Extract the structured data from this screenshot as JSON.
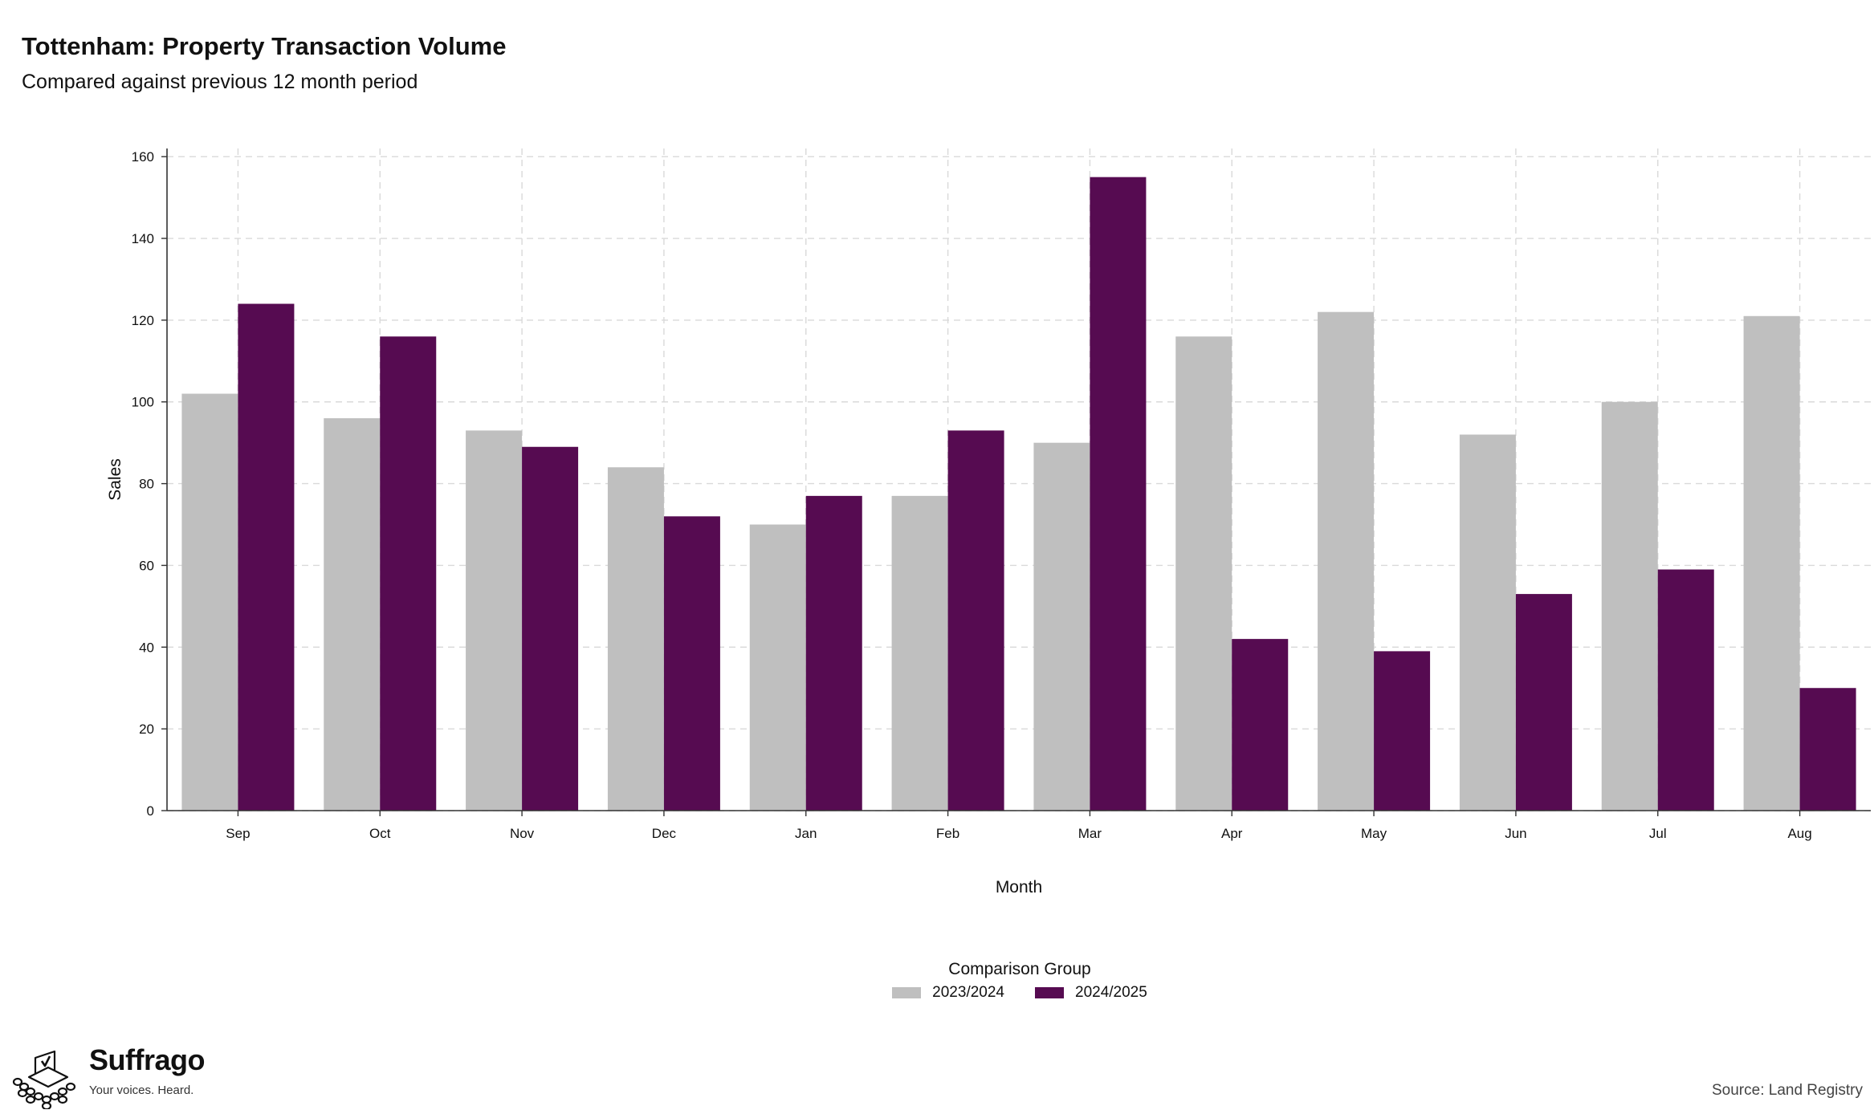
{
  "header": {
    "title": "Tottenham: Property Transaction Volume",
    "subtitle": "Compared against previous 12 month period"
  },
  "legend": {
    "title": "Comparison Group",
    "items": [
      {
        "label": "2023/2024",
        "color": "#bfbfbf"
      },
      {
        "label": "2024/2025",
        "color": "#560b51"
      }
    ]
  },
  "branding": {
    "name": "Suffrago",
    "tagline": "Your voices. Heard.",
    "logo_icon": "ballot-box-crowd-icon"
  },
  "footer": {
    "source": "Source: Land Registry"
  },
  "chart_data": {
    "type": "bar",
    "categories": [
      "Sep",
      "Oct",
      "Nov",
      "Dec",
      "Jan",
      "Feb",
      "Mar",
      "Apr",
      "May",
      "Jun",
      "Jul",
      "Aug"
    ],
    "series": [
      {
        "name": "2023/2024",
        "color": "#bfbfbf",
        "values": [
          102,
          96,
          93,
          84,
          70,
          77,
          90,
          116,
          122,
          92,
          100,
          121
        ]
      },
      {
        "name": "2024/2025",
        "color": "#560b51",
        "values": [
          124,
          116,
          89,
          72,
          77,
          93,
          155,
          42,
          39,
          53,
          59,
          30
        ]
      }
    ],
    "xlabel": "Month",
    "ylabel": "Sales",
    "ylim": [
      0,
      162
    ],
    "yticks": [
      0,
      20,
      40,
      60,
      80,
      100,
      120,
      140,
      160
    ],
    "grid": true,
    "legend_position": "bottom"
  }
}
